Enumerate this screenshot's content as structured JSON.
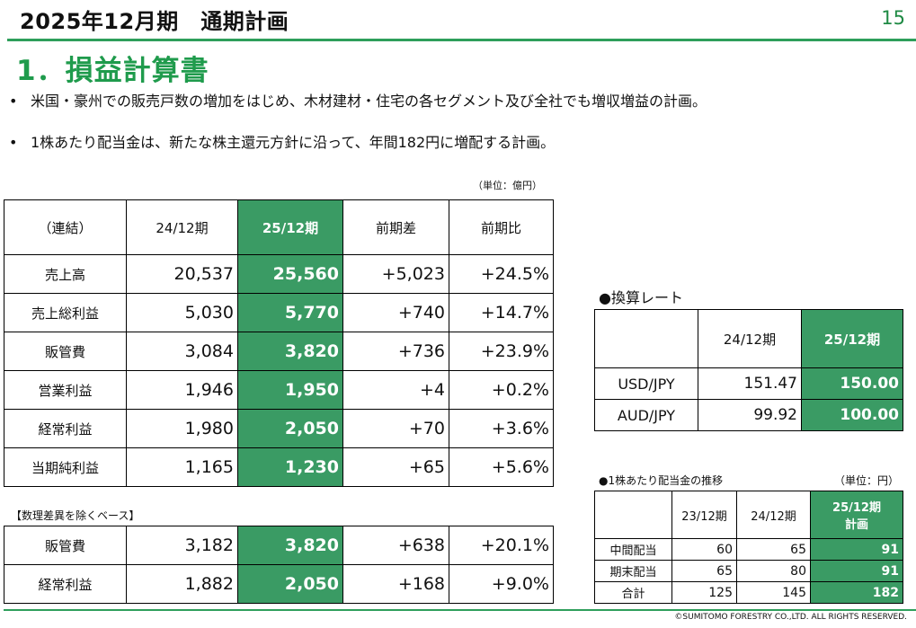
{
  "header": {
    "title": "2025年12月期　通期計画",
    "page_number": "15"
  },
  "section_title": "1．損益計算書",
  "bullets": [
    "米国・豪州での販売戸数の増加をはじめ、木材建材・住宅の各セグメント及び全社でも増収増益の計画。",
    "1株あたり配当金は、新たな株主還元方針に沿って、年間182円に増配する計画。"
  ],
  "bullet_mark": "•",
  "income_statement": {
    "unit": "（単位：億円）",
    "headers": [
      "（連結）",
      "24/12期",
      "25/12期",
      "前期差",
      "前期比"
    ],
    "rows": [
      {
        "label": "売上高",
        "prev": "20,537",
        "curr": "25,560",
        "diff": "+5,023",
        "ratio": "+24.5%"
      },
      {
        "label": "売上総利益",
        "prev": "5,030",
        "curr": "5,770",
        "diff": "+740",
        "ratio": "+14.7%"
      },
      {
        "label": "販管費",
        "prev": "3,084",
        "curr": "3,820",
        "diff": "+736",
        "ratio": "+23.9%"
      },
      {
        "label": "営業利益",
        "prev": "1,946",
        "curr": "1,950",
        "diff": "+4",
        "ratio": "+0.2%"
      },
      {
        "label": "経常利益",
        "prev": "1,980",
        "curr": "2,050",
        "diff": "+70",
        "ratio": "+3.6%"
      },
      {
        "label": "当期純利益",
        "prev": "1,165",
        "curr": "1,230",
        "diff": "+65",
        "ratio": "+5.6%"
      }
    ]
  },
  "excluding_actuarial": {
    "caption": "【数理差異を除くベース】",
    "rows": [
      {
        "label": "販管費",
        "prev": "3,182",
        "curr": "3,820",
        "diff": "+638",
        "ratio": "+20.1%"
      },
      {
        "label": "経常利益",
        "prev": "1,882",
        "curr": "2,050",
        "diff": "+168",
        "ratio": "+9.0%"
      }
    ]
  },
  "exchange_rates": {
    "title": "●換算レート",
    "headers": [
      "",
      "24/12期",
      "25/12期"
    ],
    "rows": [
      {
        "label": "USD/JPY",
        "prev": "151.47",
        "curr": "150.00"
      },
      {
        "label": "AUD/JPY",
        "prev": "99.92",
        "curr": "100.00"
      }
    ]
  },
  "dividends": {
    "title": "●1株あたり配当金の推移",
    "unit": "（単位：円）",
    "headers": [
      "",
      "23/12期",
      "24/12期",
      "25/12期",
      "計画"
    ],
    "rows": [
      {
        "label": "中間配当",
        "y23": "60",
        "y24": "65",
        "y25": "91"
      },
      {
        "label": "期末配当",
        "y23": "65",
        "y24": "80",
        "y25": "91"
      },
      {
        "label": "合計",
        "y23": "125",
        "y24": "145",
        "y25": "182"
      }
    ]
  },
  "footer": "©SUMITOMO FORESTRY CO.,LTD. ALL RIGHTS RESERVED.",
  "colors": {
    "accent_green": "#3a9b64",
    "title_green": "#1f9b4c"
  }
}
